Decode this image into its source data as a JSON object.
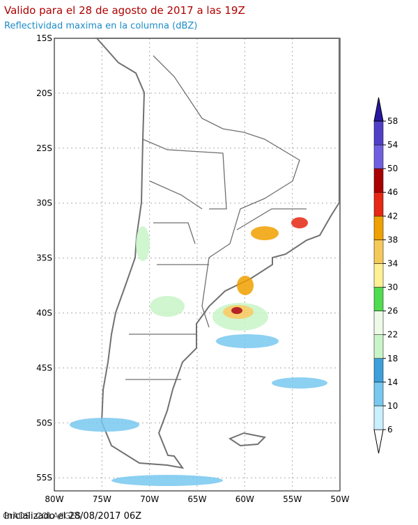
{
  "title": "Valido para el 28 de agosto de 2017 a las 19Z",
  "subtitle": "Reflectividad maxima en la columna (dBZ)",
  "lat_labels": [
    "15S",
    "20S",
    "25S",
    "30S",
    "35S",
    "40S",
    "45S",
    "50S",
    "55S"
  ],
  "lon_labels": [
    "80W",
    "75W",
    "70W",
    "65W",
    "60W",
    "55W",
    "50W"
  ],
  "colorbar": {
    "levels": [
      6,
      10,
      14,
      18,
      22,
      26,
      30,
      34,
      38,
      42,
      46,
      50,
      54,
      58
    ],
    "colors": [
      "#ffffff",
      "#c8f0ff",
      "#78c8f0",
      "#3ca0dc",
      "#c8f5c8",
      "#eefae8",
      "#50dc50",
      "#fff096",
      "#f5c85a",
      "#f0a000",
      "#e62814",
      "#aa0000",
      "#7060e0",
      "#5040c8",
      "#2818a0"
    ]
  },
  "footer": {
    "left": "GrADS: COLA/IGES",
    "right": "Inicializado el 28/08/2017 06Z"
  }
}
